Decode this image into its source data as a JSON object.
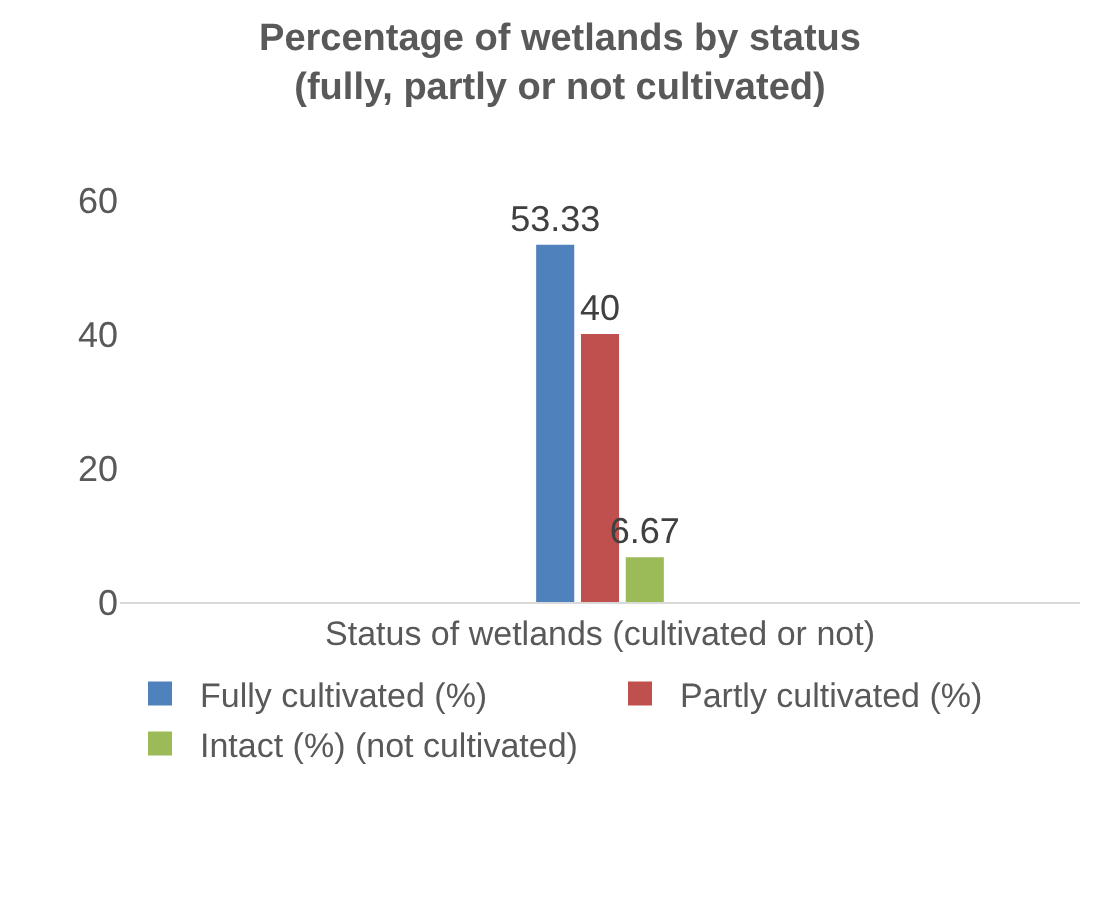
{
  "chart_data": {
    "type": "bar",
    "title": "Percentage of wetlands by status\n(fully, partly or not cultivated)",
    "categories": [
      "Status of wetlands (cultivated or not)"
    ],
    "series": [
      {
        "name": "Fully cultivated (%)",
        "color": "#4f81bd",
        "values": [
          53.33
        ]
      },
      {
        "name": "Partly cultivated (%)",
        "color": "#c0504d",
        "values": [
          40
        ]
      },
      {
        "name": "Intact (%) (not cultivated)",
        "color": "#9bbb59",
        "values": [
          6.67
        ]
      }
    ],
    "ylim": [
      0,
      60
    ],
    "yticks": [
      0,
      20,
      40,
      60
    ],
    "data_labels": true,
    "legend": "bottom",
    "grid": false
  }
}
